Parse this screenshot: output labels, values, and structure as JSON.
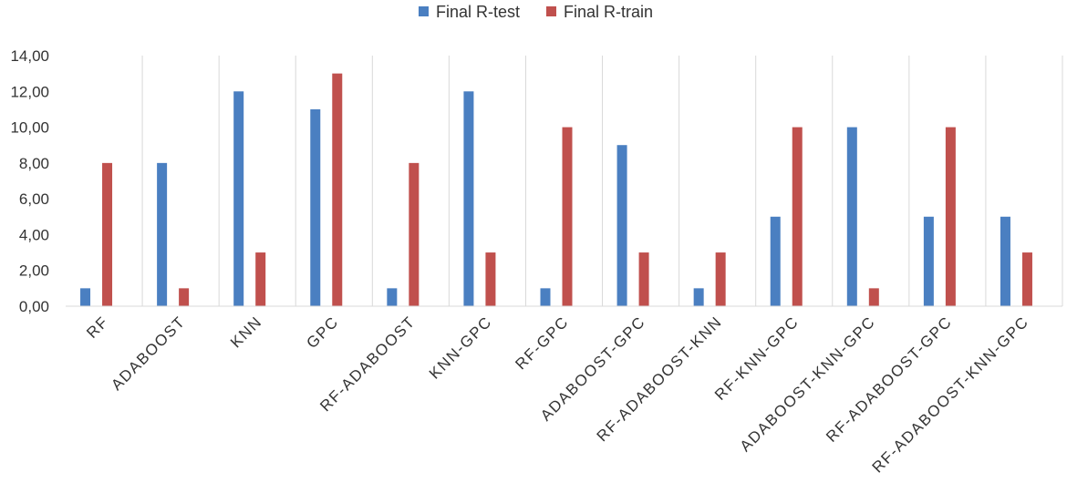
{
  "chart_data": {
    "type": "bar",
    "categories": [
      "RF",
      "ADABOOST",
      "KNN",
      "GPC",
      "RF-ADABOOST",
      "KNN-GPC",
      "RF-GPC",
      "ADABOOST-GPC",
      "RF-ADABOOST-KNN",
      "RF-KNN-GPC",
      "ADABOOST-KNN-GPC",
      "RF-ADABOOST-GPC",
      "RF-ADABOOST-KNN-GPC"
    ],
    "series": [
      {
        "name": "Final R-test",
        "color": "#4a7fc1",
        "values": [
          1,
          8,
          12,
          11,
          1,
          12,
          1,
          9,
          1,
          5,
          10,
          5,
          5
        ]
      },
      {
        "name": "Final R-train",
        "color": "#c0504d",
        "values": [
          8,
          1,
          3,
          13,
          8,
          3,
          10,
          3,
          3,
          10,
          1,
          10,
          3
        ]
      }
    ],
    "y_ticks": [
      "0,00",
      "2,00",
      "4,00",
      "6,00",
      "8,00",
      "10,00",
      "12,00",
      "14,00"
    ],
    "ylim": [
      0,
      14
    ],
    "title": "",
    "xlabel": "",
    "ylabel": "",
    "legend_position": "top-center",
    "grid": "vertical separators between categories"
  }
}
